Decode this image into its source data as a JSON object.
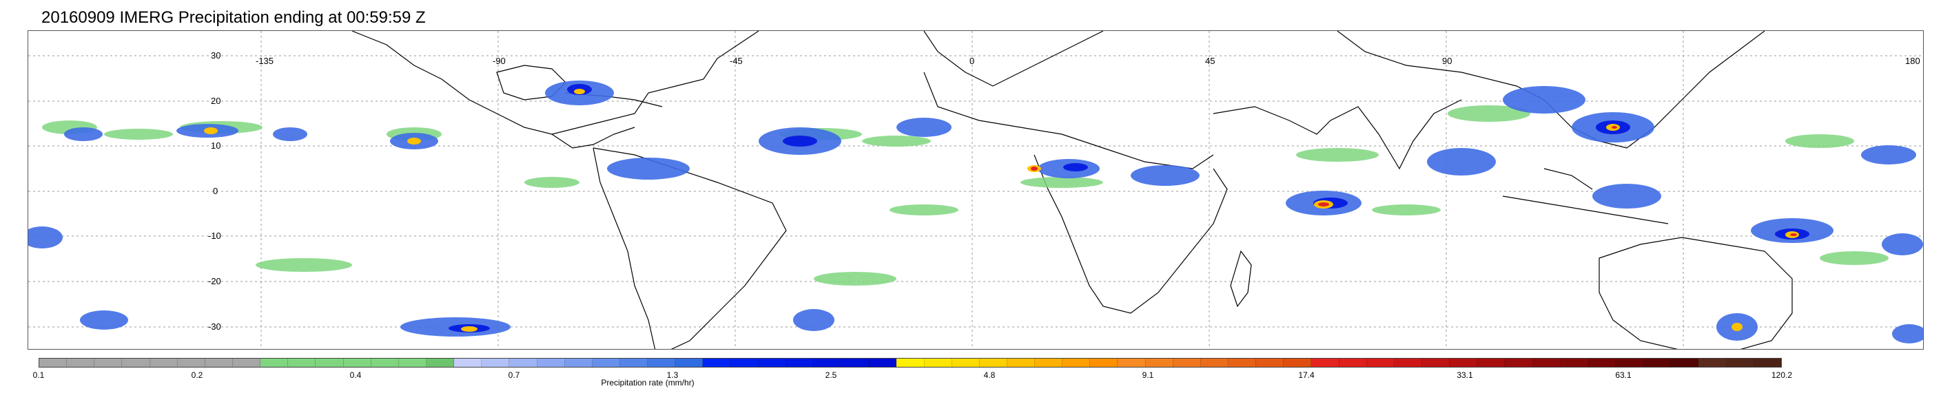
{
  "title": "20160909 IMERG Precipitation ending at 00:59:59 Z",
  "map": {
    "longitude_labels": [
      "-135",
      "-90",
      "-45",
      "0",
      "45",
      "90",
      "180"
    ],
    "latitude_labels": [
      "30",
      "20",
      "10",
      "0",
      "-10",
      "-20",
      "-30"
    ]
  },
  "colorbar": {
    "label": "Precipitation rate (mm/hr)",
    "tick_labels": [
      "0.1",
      "0.2",
      "0.4",
      "0.7",
      "1.3",
      "2.5",
      "4.8",
      "9.1",
      "17.4",
      "33.1",
      "63.1",
      "120.2"
    ],
    "colors": [
      "#a6a6a6",
      "#a6a6a6",
      "#a6a6a6",
      "#a6a6a6",
      "#a6a6a6",
      "#a6a6a6",
      "#a6a6a6",
      "#a6a6a6",
      "#7fd67f",
      "#7fd67f",
      "#7fd67f",
      "#7fd67f",
      "#7fd67f",
      "#7fd67f",
      "#6cc46c",
      "#c5cdfa",
      "#b1c0f7",
      "#9fb4f4",
      "#8ca8f2",
      "#7a9cef",
      "#6790ec",
      "#5584e9",
      "#4278e6",
      "#2f6ce3",
      "#0024f5",
      "#0020f0",
      "#001ceb",
      "#0018e6",
      "#0014e0",
      "#0010db",
      "#000cd6",
      "#fff000",
      "#ffe600",
      "#ffdc00",
      "#ffd100",
      "#ffc000",
      "#ffb000",
      "#ffa000",
      "#ff9000",
      "#f78a22",
      "#f3801f",
      "#ef761c",
      "#eb6c19",
      "#e76216",
      "#e35813",
      "#df4e10",
      "#e5231f",
      "#df1f1c",
      "#d91b19",
      "#cc1616",
      "#c01313",
      "#b41010",
      "#a80d0d",
      "#9a0b0b",
      "#8e0909",
      "#820808",
      "#760606",
      "#6a0505",
      "#5e0404",
      "#520303",
      "#5a2a1d",
      "#53261a",
      "#4c2217"
    ]
  }
}
